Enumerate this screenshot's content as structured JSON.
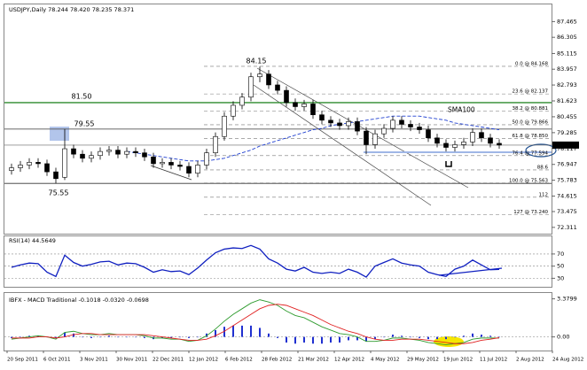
{
  "chart_data": [
    {
      "type": "candlestick",
      "title": "USDJPY,Daily  78.244 78.420 78.235 78.371",
      "x_labels": [
        "20 Sep 2011",
        "6 Oct 2011",
        "3 Nov 2011",
        "30 Nov 2011",
        "22 Dec 2011",
        "12 Jan 2012",
        "6 Feb 2012",
        "28 Feb 2012",
        "21 Mar 2012",
        "12 Apr 2012",
        "4 May 2012",
        "29 May 2012",
        "19 Jun 2012",
        "11 Jul 2012",
        "2 Aug 2012",
        "24 Aug 2012"
      ],
      "open": [
        76.5,
        76.7,
        76.9,
        77.1,
        77.0,
        76.4,
        76.0,
        78.1,
        77.7,
        77.4,
        77.6,
        77.9,
        78.0,
        77.7,
        77.9,
        77.8,
        77.5,
        77.0,
        77.1,
        76.9,
        76.8,
        76.3,
        76.9,
        77.8,
        79.0,
        80.5,
        81.3,
        81.9,
        83.4,
        83.6,
        82.8,
        82.4,
        81.5,
        81.2,
        81.4,
        80.6,
        80.2,
        80.0,
        79.8,
        80.1,
        79.4,
        78.4,
        79.2,
        79.6,
        80.2,
        79.9,
        79.7,
        79.5,
        78.9,
        78.5,
        78.2,
        78.4,
        78.6,
        79.3,
        78.9,
        78.5
      ],
      "high": [
        77.0,
        77.2,
        77.4,
        77.4,
        77.3,
        76.7,
        79.55,
        78.4,
        78.0,
        77.9,
        78.2,
        78.3,
        78.3,
        78.2,
        78.2,
        78.1,
        77.8,
        77.4,
        77.4,
        77.2,
        77.1,
        77.2,
        78.1,
        79.3,
        80.8,
        81.6,
        82.2,
        83.7,
        84.15,
        83.9,
        83.1,
        82.7,
        81.8,
        81.7,
        81.7,
        80.9,
        80.5,
        80.3,
        80.4,
        80.4,
        79.7,
        79.5,
        79.9,
        80.5,
        80.5,
        80.2,
        80.0,
        79.8,
        79.2,
        78.8,
        78.7,
        78.9,
        79.6,
        79.6,
        79.2,
        78.8
      ],
      "low": [
        76.2,
        76.4,
        76.6,
        76.7,
        76.1,
        75.55,
        75.8,
        77.4,
        77.1,
        77.1,
        77.3,
        77.6,
        77.4,
        77.4,
        77.5,
        77.2,
        76.7,
        76.7,
        76.6,
        76.5,
        76.0,
        76.0,
        76.6,
        77.5,
        78.7,
        80.2,
        81.0,
        81.6,
        83.0,
        82.5,
        82.1,
        81.2,
        80.9,
        80.9,
        80.3,
        79.9,
        79.7,
        79.5,
        79.5,
        79.1,
        77.7,
        78.1,
        78.9,
        79.3,
        79.6,
        79.4,
        79.2,
        78.6,
        78.2,
        77.9,
        77.9,
        78.1,
        78.3,
        78.6,
        78.2,
        78.1
      ],
      "close": [
        76.7,
        76.9,
        77.1,
        77.0,
        76.4,
        75.9,
        78.1,
        77.7,
        77.4,
        77.6,
        77.9,
        78.0,
        77.7,
        77.9,
        77.8,
        77.5,
        77.0,
        77.1,
        76.9,
        76.8,
        76.3,
        76.9,
        77.8,
        79.0,
        80.5,
        81.3,
        81.9,
        83.4,
        83.6,
        82.8,
        82.4,
        81.5,
        81.2,
        81.4,
        80.6,
        80.2,
        80.0,
        79.8,
        80.1,
        79.4,
        78.4,
        79.2,
        79.6,
        80.2,
        79.9,
        79.7,
        79.5,
        78.9,
        78.5,
        78.2,
        78.4,
        78.6,
        79.3,
        78.9,
        78.5,
        78.371
      ],
      "series": [
        {
          "name": "SMA100",
          "color": "#1f3fd0",
          "values": [
            null,
            null,
            null,
            null,
            null,
            null,
            null,
            null,
            null,
            null,
            null,
            null,
            null,
            77.9,
            77.8,
            77.7,
            77.6,
            77.5,
            77.4,
            77.3,
            77.2,
            77.2,
            77.2,
            77.3,
            77.4,
            77.6,
            77.8,
            78.0,
            78.3,
            78.5,
            78.7,
            78.9,
            79.1,
            79.3,
            79.5,
            79.6,
            79.8,
            79.9,
            80.0,
            80.1,
            80.2,
            80.3,
            80.4,
            80.5,
            80.5,
            80.5,
            80.5,
            80.4,
            80.3,
            80.2,
            80.0,
            79.9,
            79.8,
            79.7,
            79.6,
            79.5
          ]
        }
      ],
      "ylim": [
        71.846,
        88.728
      ],
      "yticks": [
        87.465,
        86.305,
        85.115,
        83.957,
        82.793,
        81.623,
        80.455,
        79.285,
        78.117,
        76.947,
        75.783,
        74.615,
        73.475,
        72.311
      ],
      "last_price": 78.371,
      "peak_label": "84.15",
      "levels": [
        {
          "label": "81.50",
          "value": 81.5,
          "color": "#2e8b2e"
        },
        {
          "label": "79.55",
          "value": 79.55,
          "color": "#555555"
        },
        {
          "label": "75.55",
          "value": 75.55,
          "color": "#333333"
        }
      ],
      "fib": [
        {
          "label": "0.0 @ 84.168",
          "value": 84.168
        },
        {
          "label": "23.6 @ 82.137",
          "value": 82.137
        },
        {
          "label": "38.2 @ 80.881",
          "value": 80.881
        },
        {
          "label": "50.0 @ 79.866",
          "value": 79.866
        },
        {
          "label": "61.8 @ 78.850",
          "value": 78.85
        },
        {
          "label": "76.4 @ 77.594",
          "value": 77.594
        },
        {
          "label": "88.6",
          "value": 76.544
        },
        {
          "label": "100.0 @ 75.563",
          "value": 75.563
        },
        {
          "label": "112",
          "value": 74.53
        },
        {
          "label": "127 @ 73.240",
          "value": 73.24
        }
      ]
    },
    {
      "type": "line",
      "title": "RSI(14) 44.5649",
      "series": [
        {
          "name": "RSI(14)",
          "color": "#1020c0",
          "values": [
            48,
            52,
            55,
            54,
            40,
            33,
            68,
            56,
            50,
            53,
            57,
            58,
            52,
            55,
            54,
            48,
            40,
            44,
            41,
            42,
            36,
            47,
            60,
            72,
            78,
            80,
            79,
            84,
            78,
            62,
            55,
            45,
            42,
            48,
            40,
            38,
            40,
            38,
            45,
            40,
            32,
            50,
            56,
            62,
            55,
            52,
            50,
            40,
            36,
            33,
            45,
            50,
            60,
            52,
            44,
            44.5649
          ]
        }
      ],
      "ylim": [
        16,
        99
      ],
      "yticks": [
        70,
        50,
        30
      ]
    },
    {
      "type": "macd",
      "title": "IBFX - MACD Traditional -0.1018 -0.0320 -0.0698",
      "series": [
        {
          "name": "MACD",
          "color": "#2e9b2e",
          "values": [
            -0.2,
            -0.1,
            0.0,
            0.1,
            0.0,
            -0.2,
            0.4,
            0.5,
            0.3,
            0.2,
            0.2,
            0.3,
            0.2,
            0.2,
            0.2,
            0.1,
            -0.1,
            -0.1,
            -0.2,
            -0.2,
            -0.4,
            -0.3,
            0.1,
            0.7,
            1.4,
            2.0,
            2.5,
            3.0,
            3.3,
            3.1,
            2.8,
            2.3,
            1.9,
            1.7,
            1.3,
            0.9,
            0.6,
            0.3,
            0.2,
            0.0,
            -0.4,
            -0.4,
            -0.3,
            -0.1,
            -0.1,
            -0.2,
            -0.3,
            -0.5,
            -0.6,
            -0.7,
            -0.6,
            -0.5,
            -0.2,
            -0.1,
            -0.1,
            -0.1018
          ]
        },
        {
          "name": "Signal",
          "color": "#e02020",
          "values": [
            -0.1,
            -0.1,
            -0.1,
            0.0,
            0.0,
            -0.1,
            0.0,
            0.2,
            0.3,
            0.3,
            0.2,
            0.2,
            0.2,
            0.2,
            0.2,
            0.2,
            0.1,
            0.0,
            -0.1,
            -0.2,
            -0.3,
            -0.3,
            -0.2,
            0.1,
            0.5,
            1.0,
            1.5,
            2.0,
            2.5,
            2.8,
            2.9,
            2.8,
            2.5,
            2.2,
            1.9,
            1.5,
            1.1,
            0.8,
            0.5,
            0.3,
            0.0,
            -0.2,
            -0.3,
            -0.3,
            -0.2,
            -0.2,
            -0.2,
            -0.3,
            -0.4,
            -0.5,
            -0.6,
            -0.6,
            -0.5,
            -0.3,
            -0.2,
            -0.0698
          ]
        },
        {
          "name": "Histogram",
          "color": "#2030d0",
          "values": [
            -0.1,
            0,
            0.1,
            0.1,
            0,
            -0.1,
            0.4,
            0.3,
            0,
            -0.1,
            0,
            0.1,
            0,
            0,
            0,
            -0.1,
            -0.2,
            -0.1,
            -0.1,
            0,
            -0.1,
            0,
            0.3,
            0.6,
            0.9,
            1.0,
            1.0,
            1.0,
            0.8,
            0.3,
            -0.1,
            -0.5,
            -0.6,
            -0.5,
            -0.6,
            -0.6,
            -0.5,
            -0.5,
            -0.3,
            -0.3,
            -0.4,
            -0.2,
            0,
            0.2,
            0.1,
            0,
            -0.1,
            -0.2,
            -0.2,
            -0.2,
            0,
            0.1,
            0.3,
            0.2,
            0.1,
            -0.032
          ]
        }
      ],
      "ylim": [
        -1.21,
        3.9
      ],
      "yticks": [
        3.3799,
        {
          "value": 0,
          "label": "0.00"
        }
      ]
    }
  ]
}
